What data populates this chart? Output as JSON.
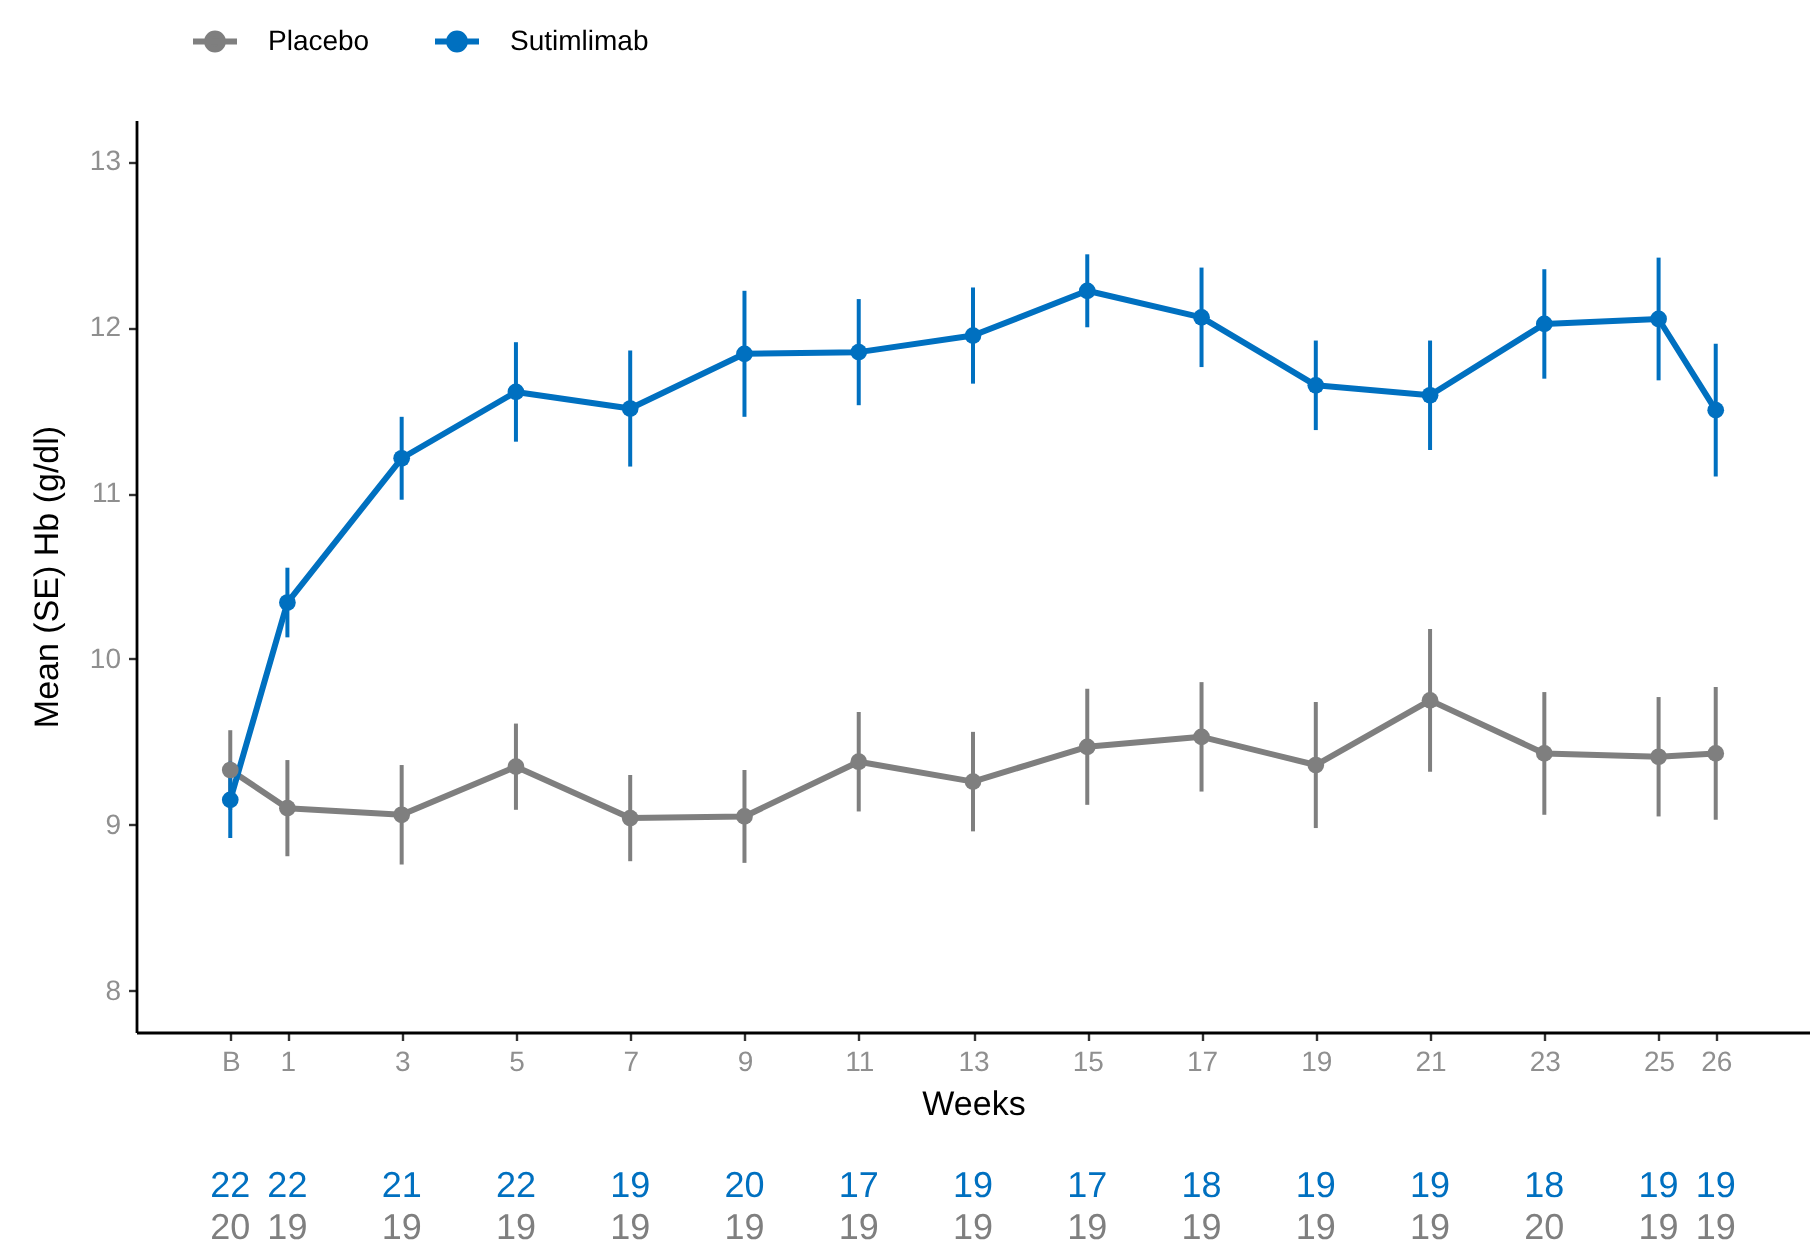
{
  "chart_data": [
    {
      "type": "line",
      "xlabel": "Weeks",
      "ylabel": "Mean (SE) Hb (g/dl)",
      "x": [
        0,
        1,
        3,
        5,
        7,
        9,
        11,
        13,
        15,
        17,
        19,
        21,
        23,
        25,
        26
      ],
      "series": [
        {
          "name": "Placebo",
          "color": "#7f7f7f",
          "values": [
            9.33,
            9.1,
            9.06,
            9.35,
            9.04,
            9.05,
            9.38,
            9.26,
            9.47,
            9.53,
            9.36,
            9.75,
            9.43,
            9.41,
            9.43
          ],
          "errors": [
            0.24,
            0.29,
            0.3,
            0.26,
            0.26,
            0.28,
            0.3,
            0.3,
            0.35,
            0.33,
            0.38,
            0.43,
            0.37,
            0.36,
            0.4
          ]
        },
        {
          "name": "Sutimlimab",
          "color": "#0070c0",
          "values": [
            9.15,
            10.34,
            11.21,
            11.61,
            11.51,
            11.84,
            11.85,
            11.95,
            12.22,
            12.06,
            11.65,
            11.59,
            12.02,
            12.05,
            11.5
          ],
          "errors": [
            0.23,
            0.21,
            0.25,
            0.3,
            0.35,
            0.38,
            0.32,
            0.29,
            0.22,
            0.3,
            0.27,
            0.33,
            0.33,
            0.37,
            0.4
          ]
        }
      ],
      "xlim": [
        -1.65,
        27.65
      ],
      "xticks": [
        {
          "value": 0,
          "label": "B"
        },
        1,
        3,
        5,
        7,
        9,
        11,
        13,
        15,
        17,
        19,
        21,
        23,
        25,
        26
      ],
      "ylim": [
        7.75,
        13.25
      ],
      "yticks": [
        8,
        9,
        10,
        11,
        12,
        13
      ],
      "marker": "circle",
      "line_style": "solid",
      "legend": "top left"
    },
    {
      "type": "other",
      "annotations": [
        "22",
        "22",
        "21",
        "22",
        "19",
        "20",
        "17",
        "19",
        "17",
        "18",
        "19",
        "19",
        "18",
        "19",
        "19",
        "20",
        "19",
        "19",
        "19",
        "19",
        "19",
        "19",
        "19",
        "19",
        "19",
        "19",
        "19",
        "20",
        "19",
        "19"
      ],
      "colors": [
        "#0070c0",
        "#0070c0",
        "#0070c0",
        "#0070c0",
        "#0070c0",
        "#0070c0",
        "#0070c0",
        "#0070c0",
        "#0070c0",
        "#0070c0",
        "#0070c0",
        "#0070c0",
        "#0070c0",
        "#0070c0",
        "#0070c0",
        "#7f7f7f",
        "#7f7f7f",
        "#7f7f7f",
        "#7f7f7f",
        "#7f7f7f",
        "#7f7f7f",
        "#7f7f7f",
        "#7f7f7f",
        "#7f7f7f",
        "#7f7f7f",
        "#7f7f7f",
        "#7f7f7f",
        "#7f7f7f",
        "#7f7f7f",
        "#7f7f7f"
      ]
    }
  ]
}
